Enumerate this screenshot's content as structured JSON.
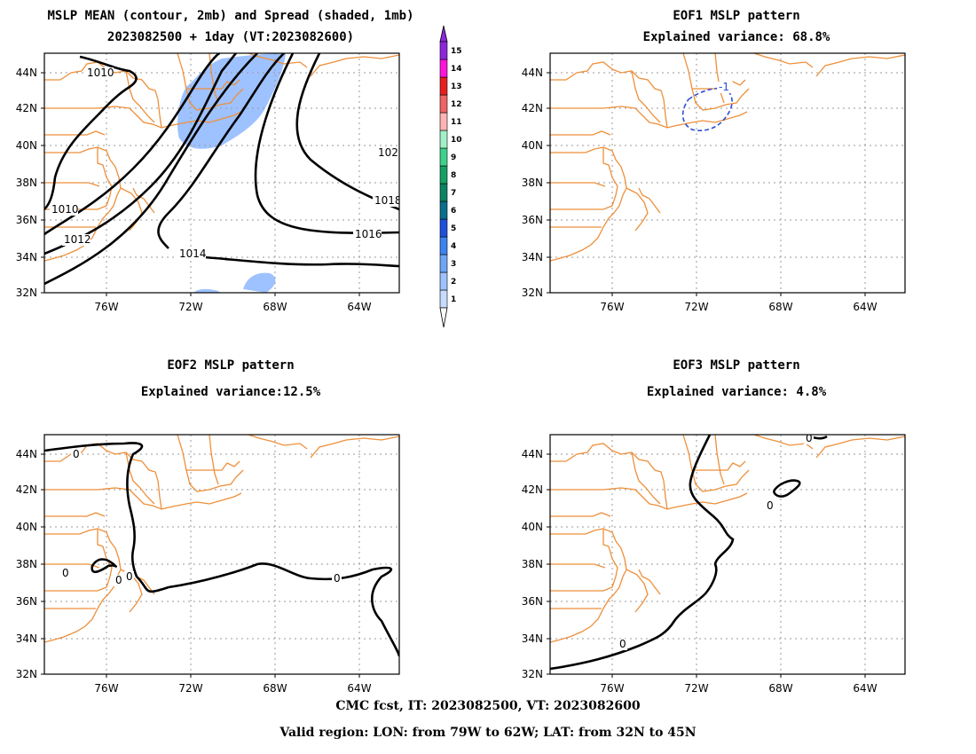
{
  "panels": [
    {
      "key": "mean",
      "title1": "MSLP MEAN (contour, 2mb) and Spread (shaded, 1mb)",
      "title2": "2023082500 + 1day (VT:2023082600)"
    },
    {
      "key": "eof1",
      "title1": "EOF1 MSLP pattern",
      "title2": "Explained variance: 68.8%"
    },
    {
      "key": "eof2",
      "title1": "EOF2 MSLP pattern",
      "title2": "Explained variance:12.5%"
    },
    {
      "key": "eof3",
      "title1": "EOF3 MSLP pattern",
      "title2": "Explained variance: 4.8%"
    }
  ],
  "axes": {
    "lat_ticks": [
      "44N",
      "42N",
      "40N",
      "38N",
      "36N",
      "34N",
      "32N"
    ],
    "lon_ticks": [
      "76W",
      "72W",
      "68W",
      "64W"
    ]
  },
  "colorbar": {
    "labels": [
      "1",
      "2",
      "3",
      "4",
      "5",
      "6",
      "7",
      "8",
      "9",
      "10",
      "11",
      "12",
      "13",
      "14",
      "15"
    ],
    "colors": [
      "#c6dcff",
      "#9ec2ff",
      "#6ea6f6",
      "#3c82f0",
      "#1e50dc",
      "#0a6e8c",
      "#0a8264",
      "#14a064",
      "#3cd28c",
      "#a0f0c8",
      "#ffb4b4",
      "#f06464",
      "#e61e1e",
      "#ff14dc",
      "#8c28dc"
    ]
  },
  "contour_labels": {
    "mean": [
      "1010",
      "1010",
      "1012",
      "1014",
      "1016",
      "1018",
      "102"
    ],
    "eof1": [
      "-1"
    ],
    "eof2": [
      "0",
      "0",
      "0",
      "0",
      "0"
    ],
    "eof3": [
      "0",
      "0",
      "0"
    ]
  },
  "footer": {
    "line1": "CMC fcst, IT: 2023082500, VT: 2023082600",
    "line2": "Valid region: LON: from 79W to 62W; LAT: from 32N to 45N"
  }
}
